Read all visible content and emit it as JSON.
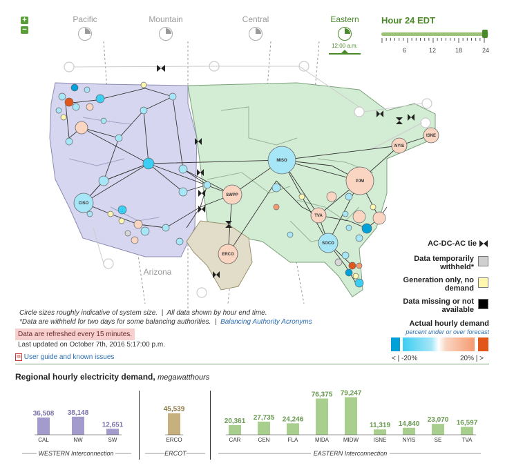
{
  "timezones": [
    {
      "name": "Pacific",
      "active": false
    },
    {
      "name": "Mountain",
      "active": false
    },
    {
      "name": "Central",
      "active": false
    },
    {
      "name": "Eastern",
      "active": true
    }
  ],
  "eastern_time": "12:00 a.m.",
  "hour_label": "Hour 24 EDT",
  "slider": {
    "ticks": [
      "6",
      "12",
      "18",
      "24"
    ],
    "value": 24,
    "max": 24
  },
  "map_labels": {
    "arizona": "Arizona"
  },
  "nodes": {
    "ciso": "CISO",
    "miso": "MISO",
    "swpp": "SWPP",
    "pjm": "PJM",
    "nyis": "NYIS",
    "isne": "ISNE",
    "tva": "TVA",
    "soco": "SOCO",
    "erco": "ERCO"
  },
  "legend": {
    "tie": "AC-DC-AC tie",
    "withheld": "Data temporarily withheld*",
    "gen_only": "Generation only, no demand",
    "missing": "Data missing or not available",
    "demand_title": "Actual hourly demand",
    "demand_sub": "percent under or over forecast",
    "low": "< | -20%",
    "high": "20% | >",
    "colors": [
      "#00a0d8",
      "#3ccdf2",
      "#a6e6f6",
      "#f9d5c2",
      "#f59a6f",
      "#e0561b"
    ]
  },
  "notes": {
    "sizes": "Circle sizes roughly indicative of system size.",
    "sep1": "|",
    "hour_end": "All data shown by hour end time.",
    "withheld": "*Data are withheld for two days for some balancing authorities.",
    "sep2": "|",
    "acronyms": "Balancing Authority Acronyms"
  },
  "refresh": "Data are refreshed every 15 minutes.",
  "last_updated": "Last updated on October 7th, 2016 5:17:00 p.m.",
  "guide": "User guide and known issues",
  "section": {
    "title": "Regional hourly electricity demand,",
    "unit": "megawatthours"
  },
  "chart_data": {
    "type": "bar",
    "title": "Regional hourly electricity demand, megawatthours",
    "groups": [
      {
        "name": "WESTERN Interconnection",
        "color": "#a39bcb",
        "categories": [
          "CAL",
          "NW",
          "SW"
        ],
        "values": [
          36508,
          38148,
          12651
        ],
        "labels": [
          "36,508",
          "38,148",
          "12,651"
        ]
      },
      {
        "name": "ERCOT",
        "color": "#c6b07c",
        "categories": [
          "ERCO"
        ],
        "values": [
          45539
        ],
        "labels": [
          "45,539"
        ]
      },
      {
        "name": "EASTERN Interconnection",
        "color": "#a8cf8e",
        "categories": [
          "CAR",
          "CEN",
          "FLA",
          "MIDA",
          "MIDW",
          "ISNE",
          "NYIS",
          "SE",
          "TVA"
        ],
        "values": [
          20361,
          27735,
          24246,
          76375,
          79247,
          11319,
          14840,
          23070,
          16597
        ],
        "labels": [
          "20,361",
          "27,735",
          "24,246",
          "76,375",
          "79,247",
          "11,319",
          "14,840",
          "23,070",
          "16,597"
        ]
      }
    ],
    "ymin": 0,
    "ymax": 80000
  }
}
